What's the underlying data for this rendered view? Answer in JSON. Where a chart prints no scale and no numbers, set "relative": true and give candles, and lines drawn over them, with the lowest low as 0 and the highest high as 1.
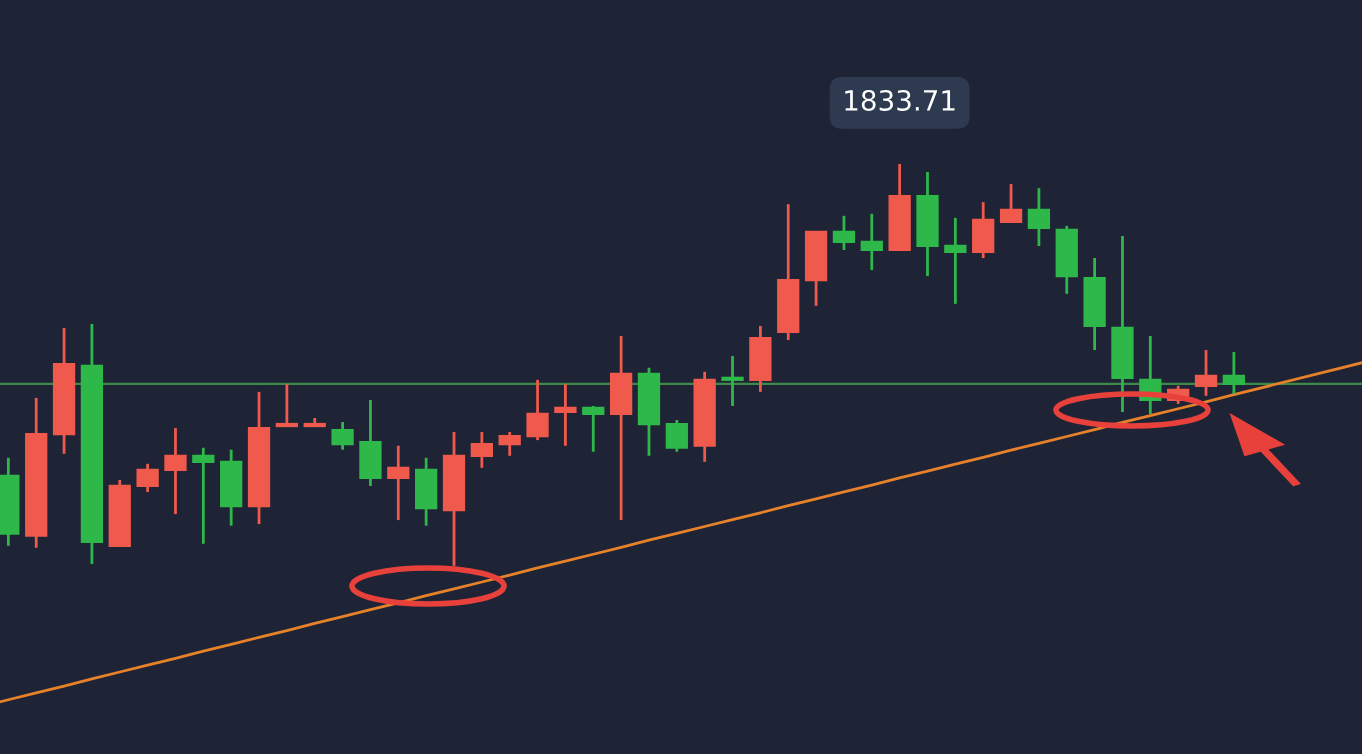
{
  "chart_data": {
    "type": "candlestick",
    "relative": true,
    "grid": false,
    "categories": [
      null,
      null,
      null,
      null,
      null,
      null,
      null,
      null,
      null,
      null,
      null,
      null,
      null,
      null,
      null,
      null,
      null,
      null,
      null,
      null,
      null,
      null,
      null,
      null,
      null,
      null,
      null,
      null,
      null,
      null,
      null,
      null,
      null,
      null,
      null,
      null,
      null,
      null,
      null,
      null,
      null,
      null,
      null,
      null,
      null
    ],
    "ohlc": [
      [
        0.224,
        0.269,
        0.05,
        0.08
      ],
      [
        0.075,
        0.418,
        0.045,
        0.328
      ],
      [
        0.328,
        0.592,
        0.279,
        0.502
      ],
      [
        0.498,
        0.602,
        0.005,
        0.06
      ],
      [
        0.05,
        0.214,
        0.05,
        0.199
      ],
      [
        0.199,
        0.254,
        0.184,
        0.239
      ],
      [
        0.239,
        0.343,
        0.129,
        0.274
      ],
      [
        0.274,
        0.294,
        0.055,
        0.259
      ],
      [
        0.259,
        0.289,
        0.1,
        0.149
      ],
      [
        0.149,
        0.433,
        0.104,
        0.343
      ],
      [
        0.348,
        0.453,
        0.348,
        0.353
      ],
      [
        0.348,
        0.368,
        0.348,
        0.353
      ],
      [
        0.338,
        0.358,
        0.289,
        0.303
      ],
      [
        0.308,
        0.413,
        0.199,
        0.219
      ],
      [
        0.219,
        0.299,
        0.114,
        0.244
      ],
      [
        0.239,
        0.269,
        0.1,
        0.144
      ],
      [
        0.139,
        0.333,
        0.0,
        0.274
      ],
      [
        0.274,
        0.333,
        0.244,
        0.303
      ],
      [
        0.303,
        0.333,
        0.274,
        0.323
      ],
      [
        0.323,
        0.463,
        0.313,
        0.378
      ],
      [
        0.383,
        0.453,
        0.299,
        0.393
      ],
      [
        0.393,
        0.398,
        0.284,
        0.378
      ],
      [
        0.378,
        0.572,
        0.114,
        0.478
      ],
      [
        0.478,
        0.493,
        0.274,
        0.353
      ],
      [
        0.353,
        0.363,
        0.284,
        0.294
      ],
      [
        0.299,
        0.483,
        0.259,
        0.463
      ],
      [
        0.468,
        0.522,
        0.398,
        0.463
      ],
      [
        0.463,
        0.597,
        0.433,
        0.567
      ],
      [
        0.582,
        0.9,
        0.562,
        0.711
      ],
      [
        0.711,
        0.831,
        0.647,
        0.831
      ],
      [
        0.831,
        0.871,
        0.786,
        0.806
      ],
      [
        0.806,
        0.876,
        0.736,
        0.786
      ],
      [
        0.786,
        1.0,
        0.786,
        0.92
      ],
      [
        0.92,
        0.98,
        0.721,
        0.796
      ],
      [
        0.796,
        0.866,
        0.652,
        0.781
      ],
      [
        0.781,
        0.905,
        0.766,
        0.861
      ],
      [
        0.856,
        0.95,
        0.856,
        0.886
      ],
      [
        0.886,
        0.94,
        0.796,
        0.841
      ],
      [
        0.836,
        0.846,
        0.677,
        0.721
      ],
      [
        0.716,
        0.766,
        0.537,
        0.597
      ],
      [
        0.592,
        0.821,
        0.383,
        0.468
      ],
      [
        0.463,
        0.572,
        0.378,
        0.413
      ],
      [
        0.413,
        0.448,
        0.403,
        0.438
      ],
      [
        0.448,
        0.537,
        0.423,
        0.473
      ],
      [
        0.473,
        0.532,
        0.428,
        0.453
      ]
    ],
    "colors": [
      "#2eb84a",
      "#ef5a4c",
      "#ef5a4c",
      "#2eb84a",
      "#ef5a4c",
      "#ef5a4c",
      "#ef5a4c",
      "#2eb84a",
      "#2eb84a",
      "#ef5a4c",
      "#ef5a4c",
      "#ef5a4c",
      "#2eb84a",
      "#2eb84a",
      "#ef5a4c",
      "#2eb84a",
      "#ef5a4c",
      "#ef5a4c",
      "#ef5a4c",
      "#ef5a4c",
      "#ef5a4c",
      "#2eb84a",
      "#ef5a4c",
      "#2eb84a",
      "#2eb84a",
      "#ef5a4c",
      "#2eb84a",
      "#ef5a4c",
      "#ef5a4c",
      "#ef5a4c",
      "#2eb84a",
      "#2eb84a",
      "#ef5a4c",
      "#2eb84a",
      "#2eb84a",
      "#ef5a4c",
      "#ef5a4c",
      "#2eb84a",
      "#2eb84a",
      "#2eb84a",
      "#2eb84a",
      "#2eb84a",
      "#ef5a4c",
      "#ef5a4c",
      "#2eb84a"
    ],
    "series": [
      {
        "type": "line",
        "values": [
          -0.333,
          -0.316,
          -0.299,
          -0.281,
          -0.264,
          -0.247,
          -0.23,
          -0.212,
          -0.195,
          -0.178,
          -0.161,
          -0.143,
          -0.126,
          -0.109,
          -0.092,
          -0.074,
          -0.057,
          -0.04,
          -0.023,
          -0.005,
          0.012,
          0.029,
          0.046,
          0.064,
          0.081,
          0.098,
          0.115,
          0.132,
          0.15,
          0.167,
          0.184,
          0.201,
          0.219,
          0.236,
          0.253,
          0.27,
          0.288,
          0.305,
          0.322,
          0.339,
          0.357,
          0.374,
          0.391,
          0.408,
          0.426
        ],
        "color": "#e8822a"
      }
    ],
    "ref_lines": [
      {
        "axis": "y",
        "value": 0.453,
        "color": "#3d8a48"
      }
    ],
    "annotations": [
      "1833.71"
    ]
  }
}
